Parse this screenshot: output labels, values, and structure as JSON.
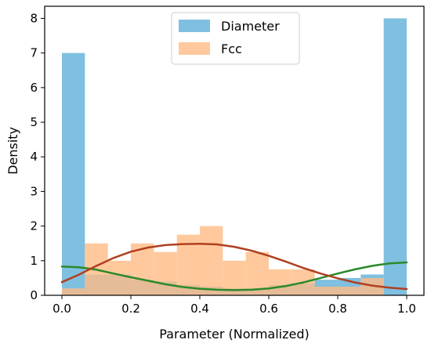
{
  "chart_data": {
    "type": "bar",
    "xlabel": "Parameter (Normalized)",
    "ylabel": "Density",
    "xlim": [
      -0.05,
      1.05
    ],
    "ylim": [
      0,
      8.35
    ],
    "x_ticks": [
      "0.0",
      "0.2",
      "0.4",
      "0.6",
      "0.8",
      "1.0"
    ],
    "x_tick_values": [
      0.0,
      0.2,
      0.4,
      0.6,
      0.8,
      1.0
    ],
    "y_ticks": [
      "0",
      "1",
      "2",
      "3",
      "4",
      "5",
      "6",
      "7",
      "8"
    ],
    "y_tick_values": [
      0,
      1,
      2,
      3,
      4,
      5,
      6,
      7,
      8
    ],
    "grid": false,
    "legend_position": "top-center",
    "bin_edges": [
      0.0,
      0.0667,
      0.1333,
      0.2,
      0.2667,
      0.3333,
      0.4,
      0.4667,
      0.5333,
      0.6,
      0.6667,
      0.7333,
      0.8,
      0.8667,
      0.9333,
      1.0
    ],
    "series": [
      {
        "name": "Diameter",
        "color": "#7fbfe0",
        "values": [
          7.0,
          0.6,
          0.6,
          0.45,
          0.4,
          0.3,
          0.25,
          0.2,
          0.2,
          0.3,
          0.35,
          0.45,
          0.5,
          0.6,
          8.0
        ]
      },
      {
        "name": "Fcc",
        "color": "#ffbb84",
        "values": [
          0.2,
          1.5,
          1.0,
          1.5,
          1.25,
          1.75,
          2.0,
          1.0,
          1.25,
          0.75,
          0.75,
          0.25,
          0.25,
          0.5,
          0.0
        ]
      }
    ],
    "density_curves": [
      {
        "color": "#2a8a2a",
        "x": [
          0.0,
          0.05,
          0.1,
          0.15,
          0.2,
          0.25,
          0.3,
          0.35,
          0.4,
          0.45,
          0.5,
          0.55,
          0.6,
          0.65,
          0.7,
          0.75,
          0.8,
          0.85,
          0.9,
          0.95,
          1.0
        ],
        "y": [
          0.83,
          0.81,
          0.74,
          0.63,
          0.52,
          0.42,
          0.32,
          0.24,
          0.19,
          0.16,
          0.15,
          0.16,
          0.2,
          0.27,
          0.37,
          0.5,
          0.63,
          0.75,
          0.85,
          0.92,
          0.95
        ]
      },
      {
        "color": "#b04020",
        "x": [
          0.0,
          0.05,
          0.1,
          0.15,
          0.2,
          0.25,
          0.3,
          0.35,
          0.4,
          0.45,
          0.5,
          0.55,
          0.6,
          0.65,
          0.7,
          0.75,
          0.8,
          0.85,
          0.9,
          0.95,
          1.0
        ],
        "y": [
          0.38,
          0.6,
          0.85,
          1.08,
          1.26,
          1.38,
          1.45,
          1.48,
          1.49,
          1.47,
          1.4,
          1.29,
          1.14,
          0.97,
          0.79,
          0.63,
          0.49,
          0.37,
          0.28,
          0.22,
          0.18
        ]
      }
    ]
  }
}
